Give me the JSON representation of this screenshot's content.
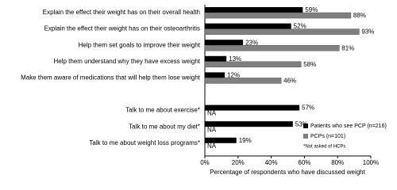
{
  "chart_data": {
    "type": "grouped-horizontal-bar",
    "x_label": "Percentage of respondents who have discussed weight",
    "categories": [
      "Explain the effect their weight has on their overall health",
      "Explain the effect their weight has on their osteoarthritis",
      "Help them set goals to improve their weight",
      "Help them understand why they have excess weight",
      "Make them aware of medications that will help them lose weight",
      null,
      "Talk to me about exercise*",
      "Talk to me about my diet*",
      "Talk to me about weight loss programs*"
    ],
    "series": [
      {
        "name": "Patients who see PCP (n=216)",
        "color": "#000000",
        "values": [
          59,
          52,
          23,
          13,
          12,
          null,
          57,
          53,
          19
        ],
        "value_labels": [
          "59%",
          "52%",
          "23%",
          "13%",
          "12%",
          null,
          "57%",
          "53%",
          "19%"
        ]
      },
      {
        "name": "PCPs (n=101)",
        "color": "#808080",
        "values": [
          88,
          93,
          81,
          58,
          46,
          null,
          null,
          null,
          null
        ],
        "value_labels": [
          "88%",
          "93%",
          "81%",
          "58%",
          "46%",
          null,
          "NA",
          "NA",
          "NA"
        ]
      }
    ],
    "xlim": [
      0,
      100
    ],
    "xticks": [
      {
        "value": 0,
        "label": "0%"
      },
      {
        "value": 20,
        "label": "20%"
      },
      {
        "value": 40,
        "label": "40%"
      },
      {
        "value": 60,
        "label": "60%"
      },
      {
        "value": 80,
        "label": "80%"
      },
      {
        "value": 100,
        "label": "100%"
      }
    ],
    "footnote": "*Not asked of HCPs",
    "legend": "right"
  }
}
